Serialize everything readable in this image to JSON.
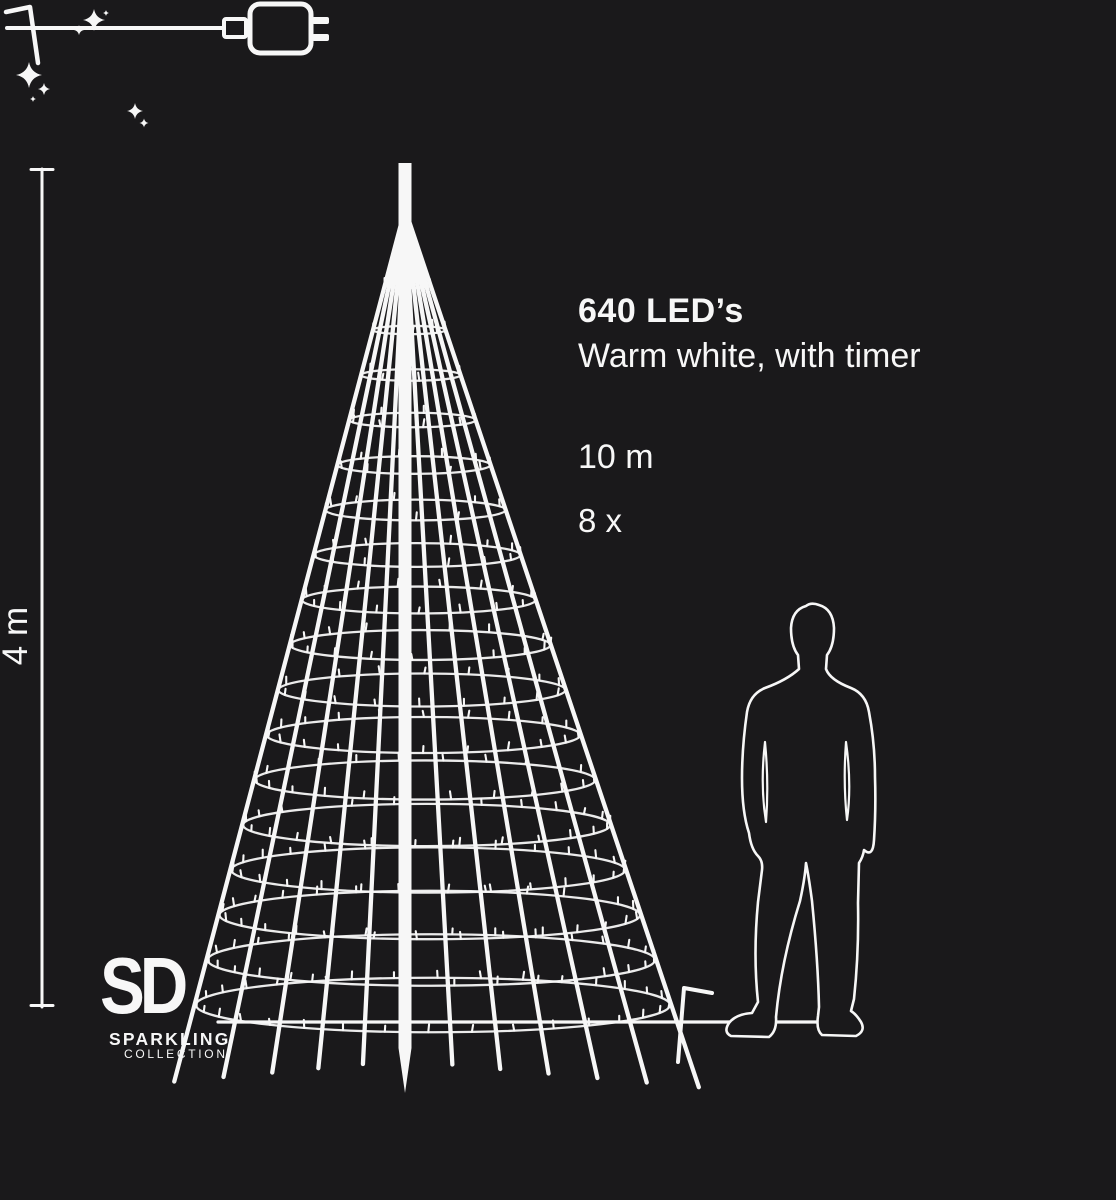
{
  "colors": {
    "background": "#1a191b",
    "foreground": "#f7f7f7"
  },
  "measure": {
    "height_label": "4 m"
  },
  "specs": {
    "leds_title": "640 LED’s",
    "light_subtitle": "Warm white, with timer",
    "cable_length_label": "10 m",
    "pegs_label": "8 x"
  },
  "brand": {
    "monogram": "SD",
    "name": "SPARKLING",
    "subname": "COLLECTION"
  },
  "icons": {
    "power-plug-icon": "mains plug with long cord",
    "ground-peg-icon": "bent ground anchor peg",
    "sparkle-stars-icon": "four-point sparkle stars",
    "person-silhouette": "standing man outline for scale",
    "height-measure-line": "vertical dimension line with end caps"
  },
  "figure": {
    "subject": "flagpole christmas tree of led light strings",
    "rings": 17,
    "strings": 11
  }
}
